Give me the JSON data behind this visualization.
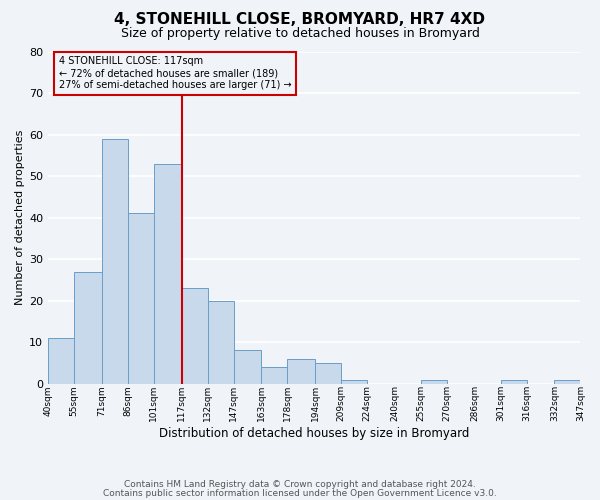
{
  "title": "4, STONEHILL CLOSE, BROMYARD, HR7 4XD",
  "subtitle": "Size of property relative to detached houses in Bromyard",
  "xlabel": "Distribution of detached houses by size in Bromyard",
  "ylabel": "Number of detached properties",
  "footnote1": "Contains HM Land Registry data © Crown copyright and database right 2024.",
  "footnote2": "Contains public sector information licensed under the Open Government Licence v3.0.",
  "bin_edges": [
    40,
    55,
    71,
    86,
    101,
    117,
    132,
    147,
    163,
    178,
    194,
    209,
    224,
    240,
    255,
    270,
    286,
    301,
    316,
    332,
    347
  ],
  "bar_heights": [
    11,
    27,
    59,
    41,
    53,
    23,
    20,
    8,
    4,
    6,
    5,
    1,
    0,
    0,
    1,
    0,
    0,
    1,
    0,
    1
  ],
  "bar_face_color": "#c9d9ec",
  "bar_edge_color": "#6a9ec8",
  "vline_x": 117,
  "vline_color": "#cc0000",
  "annotation_text": "4 STONEHILL CLOSE: 117sqm\n← 72% of detached houses are smaller (189)\n27% of semi-detached houses are larger (71) →",
  "annotation_box_color": "#cc0000",
  "ylim": [
    0,
    80
  ],
  "background_color": "#f0f4f8",
  "grid_color": "#ffffff",
  "title_fontsize": 11,
  "subtitle_fontsize": 9,
  "xlabel_fontsize": 8.5,
  "ylabel_fontsize": 8,
  "annotation_fontsize": 7,
  "footnote_fontsize": 6.5
}
